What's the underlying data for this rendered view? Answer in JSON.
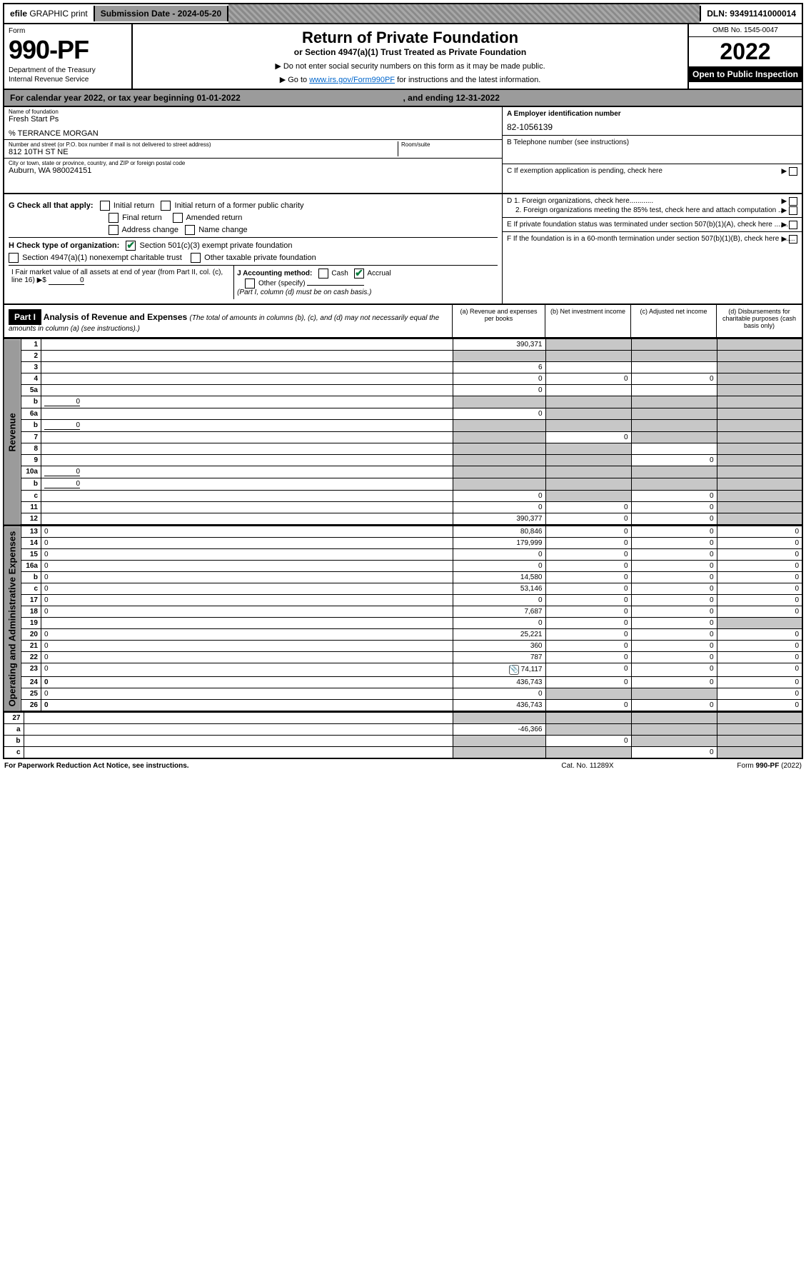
{
  "topbar": {
    "efile_prefix": "efile",
    "efile_rest": " GRAPHIC print",
    "submission_label": "Submission Date - ",
    "submission_date": "2024-05-20",
    "dln_label": "DLN: ",
    "dln": "93491141000014"
  },
  "header": {
    "form_word": "Form",
    "form_number": "990-PF",
    "dept": "Department of the Treasury",
    "irs": "Internal Revenue Service",
    "title": "Return of Private Foundation",
    "subtitle": "or Section 4947(a)(1) Trust Treated as Private Foundation",
    "note1": "▶ Do not enter social security numbers on this form as it may be made public.",
    "note2_pre": "▶ Go to ",
    "note2_link": "www.irs.gov/Form990PF",
    "note2_post": " for instructions and the latest information.",
    "omb": "OMB No. 1545-0047",
    "year": "2022",
    "open": "Open to Public Inspection"
  },
  "calendar": {
    "left_pre": "For calendar year 2022, or tax year beginning ",
    "begin": "01-01-2022",
    "mid": ", and ending ",
    "end": "12-31-2022"
  },
  "info": {
    "name_lbl": "Name of foundation",
    "name": "Fresh Start Ps",
    "care_of": "% TERRANCE MORGAN",
    "street_lbl": "Number and street (or P.O. box number if mail is not delivered to street address)",
    "street": "812 10TH ST NE",
    "room_lbl": "Room/suite",
    "room": "",
    "city_lbl": "City or town, state or province, country, and ZIP or foreign postal code",
    "city": "Auburn, WA  980024151",
    "A_lbl": "A Employer identification number",
    "A_val": "82-1056139",
    "B_lbl": "B Telephone number (see instructions)",
    "B_val": "",
    "C_lbl": "C If exemption application is pending, check here",
    "D1_lbl": "D 1. Foreign organizations, check here............",
    "D2_lbl": "2. Foreign organizations meeting the 85% test, check here and attach computation ...",
    "E_lbl": "E  If private foundation status was terminated under section 507(b)(1)(A), check here .......",
    "F_lbl": "F  If the foundation is in a 60-month termination under section 507(b)(1)(B), check here .......",
    "G_lbl": "G Check all that apply:",
    "G_opts": [
      "Initial return",
      "Final return",
      "Address change",
      "Initial return of a former public charity",
      "Amended return",
      "Name change"
    ],
    "H_lbl": "H Check type of organization:",
    "H_opt1": "Section 501(c)(3) exempt private foundation",
    "H_opt2": "Section 4947(a)(1) nonexempt charitable trust",
    "H_opt3": "Other taxable private foundation",
    "I_lbl": "I Fair market value of all assets at end of year (from Part II, col. (c), line 16) ▶$ ",
    "I_val": "0",
    "J_lbl": "J Accounting method:",
    "J_cash": "Cash",
    "J_accrual": "Accrual",
    "J_other": "Other (specify)",
    "J_note": "(Part I, column (d) must be on cash basis.)"
  },
  "part1": {
    "tag": "Part I",
    "title": "Analysis of Revenue and Expenses ",
    "title_note": "(The total of amounts in columns (b), (c), and (d) may not necessarily equal the amounts in column (a) (see instructions).)",
    "col_a": "(a) Revenue and expenses per books",
    "col_b": "(b) Net investment income",
    "col_c": "(c) Adjusted net income",
    "col_d": "(d) Disbursements for charitable purposes (cash basis only)",
    "vlabel_rev": "Revenue",
    "vlabel_exp": "Operating and Administrative Expenses"
  },
  "rows": [
    {
      "n": "1",
      "d": "",
      "a": "390,371",
      "b": "",
      "c": "",
      "bs": true,
      "cs": true,
      "ds": true
    },
    {
      "n": "2",
      "d": "",
      "a": "",
      "b": "",
      "c": "",
      "as": true,
      "bs": true,
      "cs": true,
      "ds": true,
      "bold_not": true
    },
    {
      "n": "3",
      "d": "",
      "a": "6",
      "b": "",
      "c": "",
      "ds": true
    },
    {
      "n": "4",
      "d": "",
      "a": "0",
      "b": "0",
      "c": "0",
      "ds": true
    },
    {
      "n": "5a",
      "d": "",
      "a": "0",
      "b": "",
      "c": "",
      "ds": true
    },
    {
      "n": "b",
      "d": "",
      "uf": "0",
      "a": "",
      "b": "",
      "c": "",
      "as": true,
      "bs": true,
      "cs": true,
      "ds": true
    },
    {
      "n": "6a",
      "d": "",
      "a": "0",
      "b": "",
      "c": "",
      "bs": true,
      "cs": true,
      "ds": true
    },
    {
      "n": "b",
      "d": "",
      "uf": "0",
      "a": "",
      "b": "",
      "c": "",
      "as": true,
      "bs": true,
      "cs": true,
      "ds": true
    },
    {
      "n": "7",
      "d": "",
      "a": "",
      "b": "0",
      "c": "",
      "as": true,
      "cs": true,
      "ds": true
    },
    {
      "n": "8",
      "d": "",
      "a": "",
      "b": "",
      "c": "",
      "as": true,
      "bs": true,
      "ds": true
    },
    {
      "n": "9",
      "d": "",
      "a": "",
      "b": "",
      "c": "0",
      "as": true,
      "bs": true,
      "ds": true
    },
    {
      "n": "10a",
      "d": "",
      "uf": "0",
      "a": "",
      "b": "",
      "c": "",
      "as": true,
      "bs": true,
      "cs": true,
      "ds": true
    },
    {
      "n": "b",
      "d": "",
      "uf": "0",
      "a": "",
      "b": "",
      "c": "",
      "as": true,
      "bs": true,
      "cs": true,
      "ds": true
    },
    {
      "n": "c",
      "d": "",
      "a": "0",
      "b": "",
      "c": "0",
      "bs": true,
      "ds": true
    },
    {
      "n": "11",
      "d": "",
      "a": "0",
      "b": "0",
      "c": "0",
      "ds": true
    },
    {
      "n": "12",
      "d": "",
      "a": "390,377",
      "b": "0",
      "c": "0",
      "ds": true,
      "bold": true
    }
  ],
  "exp_rows": [
    {
      "n": "13",
      "d": "0",
      "a": "80,846",
      "b": "0",
      "c": "0"
    },
    {
      "n": "14",
      "d": "0",
      "a": "179,999",
      "b": "0",
      "c": "0"
    },
    {
      "n": "15",
      "d": "0",
      "a": "0",
      "b": "0",
      "c": "0"
    },
    {
      "n": "16a",
      "d": "0",
      "a": "0",
      "b": "0",
      "c": "0"
    },
    {
      "n": "b",
      "d": "0",
      "a": "14,580",
      "b": "0",
      "c": "0"
    },
    {
      "n": "c",
      "d": "0",
      "a": "53,146",
      "b": "0",
      "c": "0"
    },
    {
      "n": "17",
      "d": "0",
      "a": "0",
      "b": "0",
      "c": "0"
    },
    {
      "n": "18",
      "d": "0",
      "a": "7,687",
      "b": "0",
      "c": "0"
    },
    {
      "n": "19",
      "d": "",
      "a": "0",
      "b": "0",
      "c": "0",
      "ds": true
    },
    {
      "n": "20",
      "d": "0",
      "a": "25,221",
      "b": "0",
      "c": "0"
    },
    {
      "n": "21",
      "d": "0",
      "a": "360",
      "b": "0",
      "c": "0"
    },
    {
      "n": "22",
      "d": "0",
      "a": "787",
      "b": "0",
      "c": "0"
    },
    {
      "n": "23",
      "d": "0",
      "a": "74,117",
      "b": "0",
      "c": "0",
      "icon": true
    },
    {
      "n": "24",
      "d": "0",
      "a": "436,743",
      "b": "0",
      "c": "0",
      "bold": true
    },
    {
      "n": "25",
      "d": "0",
      "a": "0",
      "b": "",
      "c": "",
      "bs": true,
      "cs": true
    },
    {
      "n": "26",
      "d": "0",
      "a": "436,743",
      "b": "0",
      "c": "0",
      "bold": true
    }
  ],
  "tail_rows": [
    {
      "n": "27",
      "d": "",
      "a": "",
      "b": "",
      "c": "",
      "as": true,
      "bs": true,
      "cs": true,
      "ds": true
    },
    {
      "n": "a",
      "d": "",
      "a": "-46,366",
      "b": "",
      "c": "",
      "bs": true,
      "cs": true,
      "ds": true,
      "bold": true
    },
    {
      "n": "b",
      "d": "",
      "a": "",
      "b": "0",
      "c": "",
      "as": true,
      "cs": true,
      "ds": true,
      "bold": true
    },
    {
      "n": "c",
      "d": "",
      "a": "",
      "b": "",
      "c": "0",
      "as": true,
      "bs": true,
      "ds": true,
      "bold": true
    }
  ],
  "footer": {
    "left": "For Paperwork Reduction Act Notice, see instructions.",
    "mid": "Cat. No. 11289X",
    "right": "Form 990-PF (2022)"
  },
  "colors": {
    "grey": "#9b9b9b",
    "shade": "#c7c7c7",
    "link": "#0066cc",
    "check": "#0a7d3d"
  }
}
